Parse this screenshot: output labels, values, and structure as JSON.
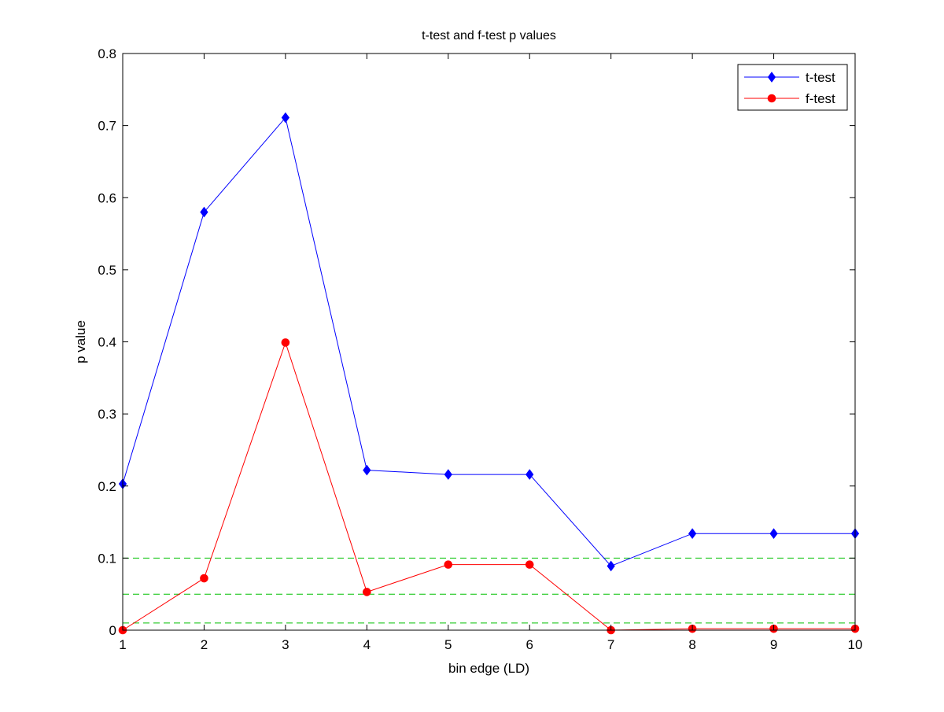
{
  "chart_data": {
    "type": "line",
    "title": "t-test and f-test p values",
    "xlabel": "bin edge (LD)",
    "ylabel": "p value",
    "xlim": [
      1,
      10
    ],
    "ylim": [
      0,
      0.8
    ],
    "x_ticks": [
      "1",
      "2",
      "3",
      "4",
      "5",
      "6",
      "7",
      "8",
      "9",
      "10"
    ],
    "y_ticks": [
      "0",
      "0.1",
      "0.2",
      "0.3",
      "0.4",
      "0.5",
      "0.6",
      "0.7",
      "0.8"
    ],
    "x": [
      1,
      2,
      3,
      4,
      5,
      6,
      7,
      8,
      9,
      10
    ],
    "series": [
      {
        "name": "t-test",
        "color": "#0000ff",
        "marker": "diamond",
        "values": [
          0.203,
          0.58,
          0.711,
          0.222,
          0.216,
          0.216,
          0.089,
          0.134,
          0.134,
          0.134
        ]
      },
      {
        "name": "f-test",
        "color": "#ff0000",
        "marker": "circle",
        "values": [
          0.0,
          0.072,
          0.399,
          0.053,
          0.091,
          0.091,
          0.0,
          0.002,
          0.002,
          0.002
        ]
      }
    ],
    "reference_lines": {
      "color": "#00c000",
      "style": "dashed",
      "values": [
        0.1,
        0.05,
        0.01
      ]
    },
    "grid": false,
    "legend_position": "top-right"
  }
}
